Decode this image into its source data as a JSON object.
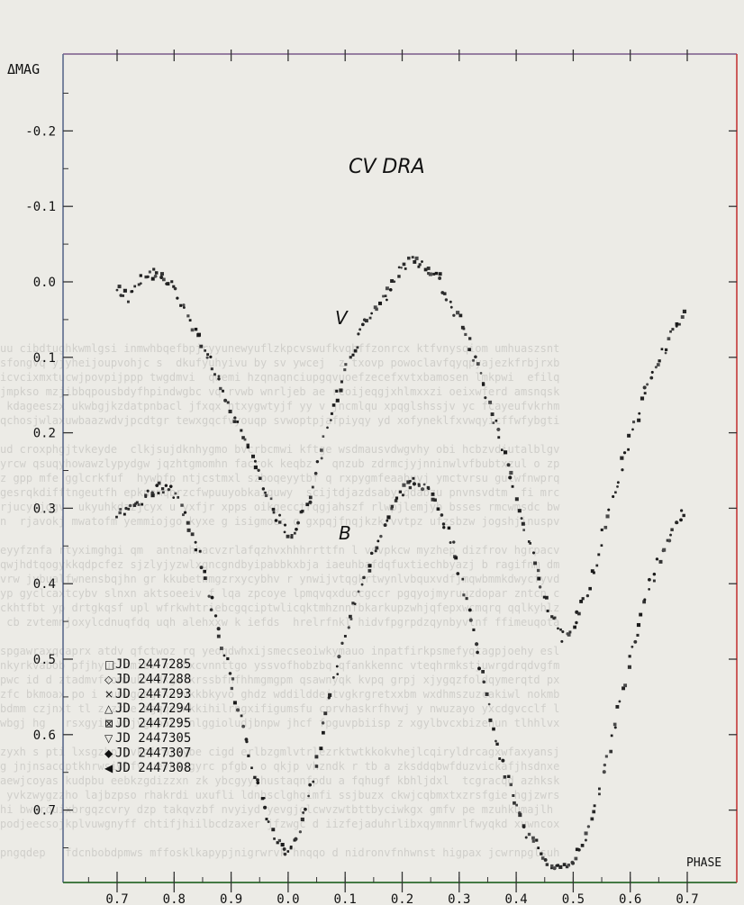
{
  "chart_data": {
    "type": "scatter",
    "title": "CV DRA",
    "ylabel": "ΔMAG",
    "xlabel": "PHASE",
    "yticks": [
      "-0.2",
      "-0.1",
      "0.0",
      "0.1",
      "0.2",
      "0.3",
      "0.4",
      "0.5",
      "0.6",
      "0.7"
    ],
    "xticks": [
      "0.7",
      "0.8",
      "0.9",
      "0.0",
      "0.1",
      "0.2",
      "0.3",
      "0.4",
      "0.5",
      "0.6",
      "0.7"
    ],
    "ylim": [
      -0.27,
      0.8
    ],
    "y_inverted": true,
    "xlim_phase_unwrapped": [
      0.6,
      1.72
    ],
    "curve_labels": {
      "V": "V",
      "B": "B"
    },
    "legend_position": "bottom-left",
    "legend": [
      {
        "symbol": "□",
        "label": "JD 2447285"
      },
      {
        "symbol": "◇",
        "label": "JD 2447288"
      },
      {
        "symbol": "×",
        "label": "JD 2447293"
      },
      {
        "symbol": "△",
        "label": "JD 2447294"
      },
      {
        "symbol": "⊠",
        "label": "JD 2447295"
      },
      {
        "symbol": "▽",
        "label": "JD 2447305"
      },
      {
        "symbol": "◆",
        "label": "JD 2447307"
      },
      {
        "symbol": "◀",
        "label": "JD 2447308"
      }
    ],
    "series": [
      {
        "name": "V",
        "x": [
          0.7,
          0.72,
          0.74,
          0.76,
          0.78,
          0.8,
          0.82,
          0.84,
          0.86,
          0.88,
          0.9,
          0.92,
          0.94,
          0.96,
          0.98,
          1.0,
          1.02,
          1.04,
          1.06,
          1.08,
          1.1,
          1.12,
          1.14,
          1.16,
          1.18,
          1.2,
          1.22,
          1.24,
          1.26,
          1.28,
          1.3,
          1.32,
          1.34,
          1.36,
          1.38,
          1.4,
          1.42,
          1.44,
          1.46,
          1.48,
          1.5,
          1.52,
          1.54,
          1.56,
          1.58,
          1.6,
          1.62,
          1.64,
          1.66,
          1.68,
          1.7
        ],
        "y": [
          0.01,
          0.02,
          0.0,
          -0.01,
          -0.01,
          0.01,
          0.04,
          0.07,
          0.1,
          0.13,
          0.17,
          0.2,
          0.24,
          0.28,
          0.31,
          0.34,
          0.32,
          0.28,
          0.22,
          0.17,
          0.12,
          0.08,
          0.05,
          0.03,
          0.01,
          -0.02,
          -0.03,
          -0.02,
          -0.01,
          0.02,
          0.05,
          0.09,
          0.13,
          0.18,
          0.23,
          0.29,
          0.34,
          0.4,
          0.44,
          0.47,
          0.46,
          0.42,
          0.37,
          0.31,
          0.26,
          0.21,
          0.16,
          0.12,
          0.09,
          0.06,
          0.04
        ]
      },
      {
        "name": "B",
        "x": [
          0.7,
          0.72,
          0.74,
          0.76,
          0.78,
          0.8,
          0.82,
          0.84,
          0.86,
          0.88,
          0.9,
          0.92,
          0.94,
          0.96,
          0.98,
          1.0,
          1.02,
          1.04,
          1.06,
          1.08,
          1.1,
          1.12,
          1.14,
          1.16,
          1.18,
          1.2,
          1.22,
          1.24,
          1.26,
          1.28,
          1.3,
          1.32,
          1.34,
          1.36,
          1.38,
          1.4,
          1.42,
          1.44,
          1.46,
          1.48,
          1.5,
          1.52,
          1.54,
          1.56,
          1.58,
          1.6,
          1.62,
          1.64,
          1.66,
          1.68,
          1.7
        ],
        "y": [
          0.31,
          0.3,
          0.29,
          0.28,
          0.27,
          0.28,
          0.31,
          0.35,
          0.41,
          0.47,
          0.53,
          0.59,
          0.65,
          0.7,
          0.74,
          0.76,
          0.73,
          0.67,
          0.6,
          0.53,
          0.47,
          0.42,
          0.38,
          0.34,
          0.3,
          0.28,
          0.26,
          0.27,
          0.29,
          0.33,
          0.38,
          0.45,
          0.52,
          0.59,
          0.65,
          0.7,
          0.73,
          0.75,
          0.77,
          0.78,
          0.77,
          0.74,
          0.69,
          0.63,
          0.57,
          0.5,
          0.44,
          0.39,
          0.35,
          0.32,
          0.3
        ]
      }
    ]
  }
}
